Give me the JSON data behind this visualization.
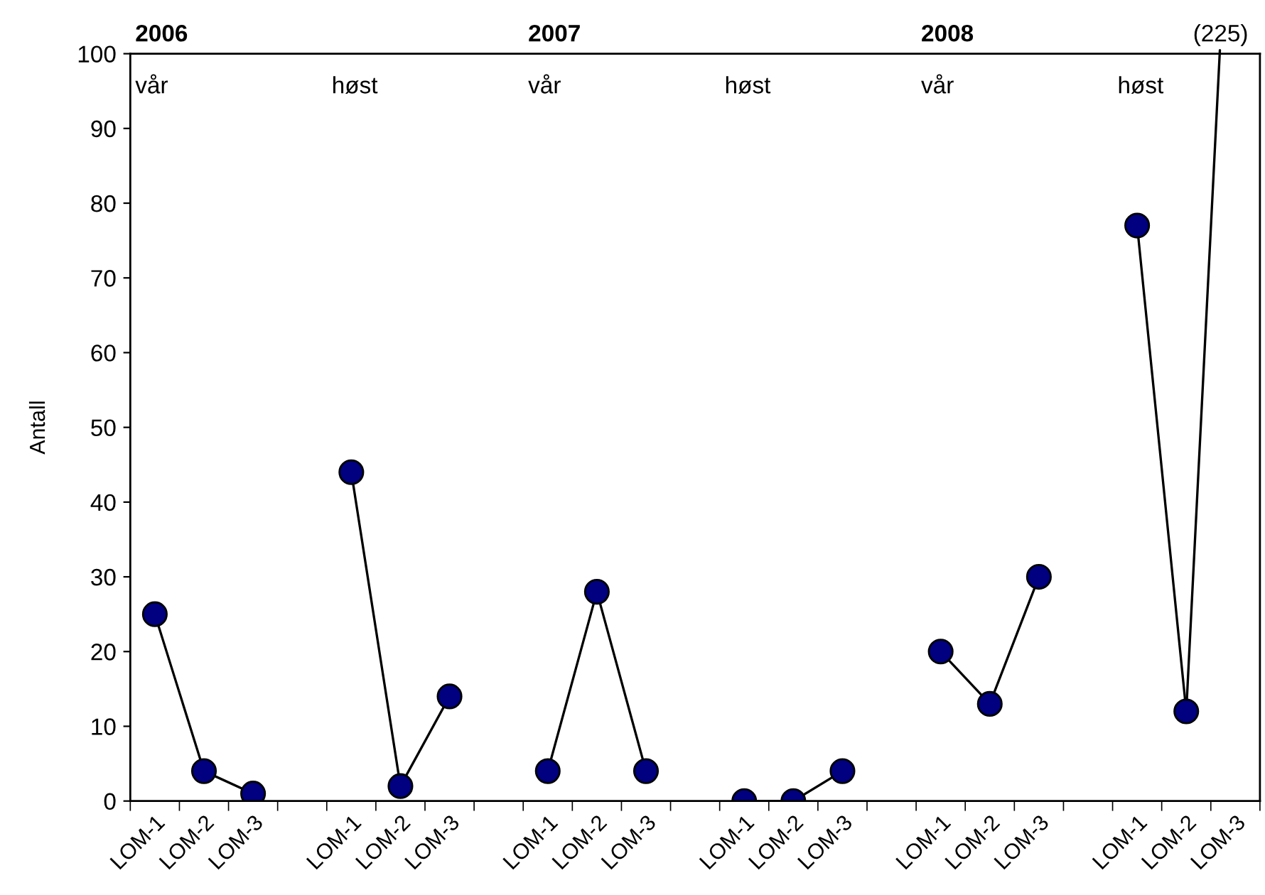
{
  "chart_data": {
    "type": "line",
    "ylabel": "Antall",
    "categories": [
      "LOM-1",
      "LOM-2",
      "LOM-3",
      null,
      "LOM-1",
      "LOM-2",
      "LOM-3",
      null,
      "LOM-1",
      "LOM-2",
      "LOM-3",
      null,
      "LOM-1",
      "LOM-2",
      "LOM-3",
      null,
      "LOM-1",
      "LOM-2",
      "LOM-3",
      null,
      "LOM-1",
      "LOM-2",
      "LOM-3"
    ],
    "series": [
      {
        "color": "#000080",
        "values": [
          25,
          4,
          1,
          null,
          44,
          2,
          14,
          null,
          4,
          28,
          4,
          null,
          0,
          0,
          4,
          null,
          20,
          13,
          30,
          null,
          77,
          12,
          null
        ]
      }
    ],
    "ylim": [
      0,
      100
    ],
    "yticks": [
      0,
      10,
      20,
      30,
      40,
      50,
      60,
      70,
      80,
      90,
      100
    ],
    "marker": "circle",
    "line_style": "solid",
    "grid": false,
    "legend": false,
    "annotations": [
      "2006",
      "2007",
      "2008",
      "vår",
      "høst",
      "vår",
      "høst",
      "vår",
      "høst",
      "(225)"
    ]
  }
}
